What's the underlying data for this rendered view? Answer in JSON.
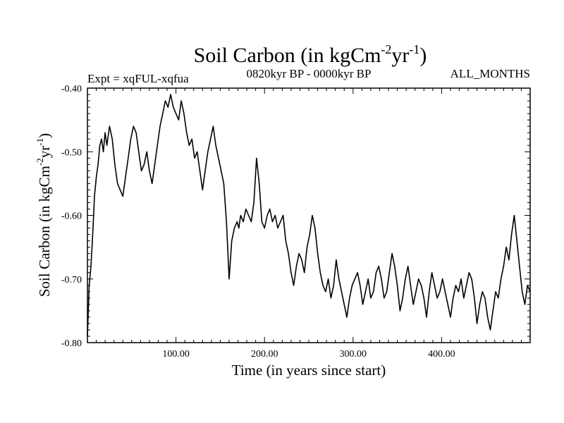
{
  "chart_data": {
    "type": "line",
    "title": "Soil Carbon (in kgCm",
    "title_sup1": "-2",
    "title_mid": "yr",
    "title_sup2": "-1",
    "title_end": ")",
    "subtitle_left": "Expt = xqFUL-xqfua",
    "subtitle_center": "0820kyr BP - 0000kyr BP",
    "subtitle_right": "ALL_MONTHS",
    "xlabel": "Time (in years since start)",
    "ylabel": "Soil Carbon (in kgCm",
    "ylabel_sup1": "-2",
    "ylabel_mid": "yr",
    "ylabel_sup2": "-1",
    "ylabel_end": ")",
    "xlim": [
      0,
      500
    ],
    "ylim": [
      -0.8,
      -0.4
    ],
    "xticks": [
      100,
      200,
      300,
      400
    ],
    "xtick_labels": [
      "100.00",
      "200.00",
      "300.00",
      "400.00"
    ],
    "yticks": [
      -0.4,
      -0.5,
      -0.6,
      -0.7,
      -0.8
    ],
    "ytick_labels": [
      "-0.40",
      "-0.50",
      "-0.60",
      "-0.70",
      "-0.80"
    ],
    "grid": false,
    "series": [
      {
        "name": "Soil Carbon",
        "color": "#000000",
        "x": [
          0,
          2,
          4,
          6,
          8,
          10,
          12,
          14,
          16,
          18,
          20,
          22,
          25,
          28,
          31,
          34,
          37,
          40,
          43,
          46,
          49,
          52,
          55,
          58,
          61,
          64,
          67,
          70,
          73,
          76,
          79,
          82,
          85,
          88,
          91,
          94,
          97,
          100,
          103,
          106,
          109,
          112,
          115,
          118,
          121,
          124,
          127,
          130,
          133,
          136,
          139,
          142,
          145,
          148,
          151,
          154,
          157,
          160,
          163,
          166,
          169,
          171,
          173,
          176,
          179,
          182,
          185,
          188,
          191,
          194,
          197,
          200,
          203,
          206,
          209,
          212,
          215,
          218,
          221,
          224,
          227,
          230,
          233,
          236,
          239,
          242,
          245,
          248,
          251,
          254,
          257,
          260,
          263,
          266,
          269,
          272,
          275,
          278,
          281,
          284,
          287,
          290,
          293,
          296,
          299,
          302,
          305,
          308,
          311,
          314,
          317,
          320,
          323,
          326,
          329,
          332,
          335,
          338,
          341,
          344,
          347,
          350,
          353,
          356,
          359,
          362,
          365,
          368,
          371,
          374,
          377,
          380,
          383,
          386,
          389,
          392,
          395,
          398,
          401,
          404,
          407,
          410,
          413,
          416,
          419,
          422,
          425,
          428,
          431,
          434,
          437,
          440,
          443,
          446,
          449,
          452,
          455,
          458,
          461,
          464,
          467,
          470,
          473,
          476,
          479,
          482,
          485,
          488,
          491,
          494,
          497,
          500
        ],
        "values": [
          -0.79,
          -0.71,
          -0.68,
          -0.63,
          -0.57,
          -0.54,
          -0.52,
          -0.49,
          -0.48,
          -0.5,
          -0.47,
          -0.49,
          -0.46,
          -0.48,
          -0.52,
          -0.55,
          -0.56,
          -0.57,
          -0.54,
          -0.51,
          -0.48,
          -0.46,
          -0.47,
          -0.5,
          -0.53,
          -0.52,
          -0.5,
          -0.53,
          -0.55,
          -0.52,
          -0.49,
          -0.46,
          -0.44,
          -0.42,
          -0.43,
          -0.41,
          -0.43,
          -0.44,
          -0.45,
          -0.42,
          -0.44,
          -0.47,
          -0.49,
          -0.48,
          -0.51,
          -0.5,
          -0.53,
          -0.56,
          -0.53,
          -0.5,
          -0.48,
          -0.46,
          -0.49,
          -0.51,
          -0.53,
          -0.55,
          -0.61,
          -0.7,
          -0.64,
          -0.62,
          -0.61,
          -0.62,
          -0.6,
          -0.61,
          -0.59,
          -0.6,
          -0.61,
          -0.58,
          -0.51,
          -0.55,
          -0.61,
          -0.62,
          -0.6,
          -0.59,
          -0.61,
          -0.6,
          -0.62,
          -0.61,
          -0.6,
          -0.64,
          -0.66,
          -0.69,
          -0.71,
          -0.68,
          -0.66,
          -0.67,
          -0.69,
          -0.65,
          -0.63,
          -0.6,
          -0.62,
          -0.66,
          -0.69,
          -0.71,
          -0.72,
          -0.7,
          -0.73,
          -0.71,
          -0.67,
          -0.7,
          -0.72,
          -0.74,
          -0.76,
          -0.73,
          -0.71,
          -0.7,
          -0.69,
          -0.71,
          -0.74,
          -0.72,
          -0.7,
          -0.73,
          -0.72,
          -0.69,
          -0.68,
          -0.7,
          -0.73,
          -0.72,
          -0.69,
          -0.66,
          -0.68,
          -0.71,
          -0.75,
          -0.73,
          -0.7,
          -0.68,
          -0.71,
          -0.74,
          -0.72,
          -0.7,
          -0.71,
          -0.73,
          -0.76,
          -0.72,
          -0.69,
          -0.71,
          -0.73,
          -0.72,
          -0.7,
          -0.72,
          -0.74,
          -0.76,
          -0.73,
          -0.71,
          -0.72,
          -0.7,
          -0.73,
          -0.71,
          -0.69,
          -0.7,
          -0.73,
          -0.77,
          -0.74,
          -0.72,
          -0.73,
          -0.76,
          -0.78,
          -0.75,
          -0.72,
          -0.73,
          -0.7,
          -0.68,
          -0.65,
          -0.67,
          -0.63,
          -0.6,
          -0.64,
          -0.68,
          -0.72,
          -0.74,
          -0.71,
          -0.72
        ]
      }
    ]
  }
}
